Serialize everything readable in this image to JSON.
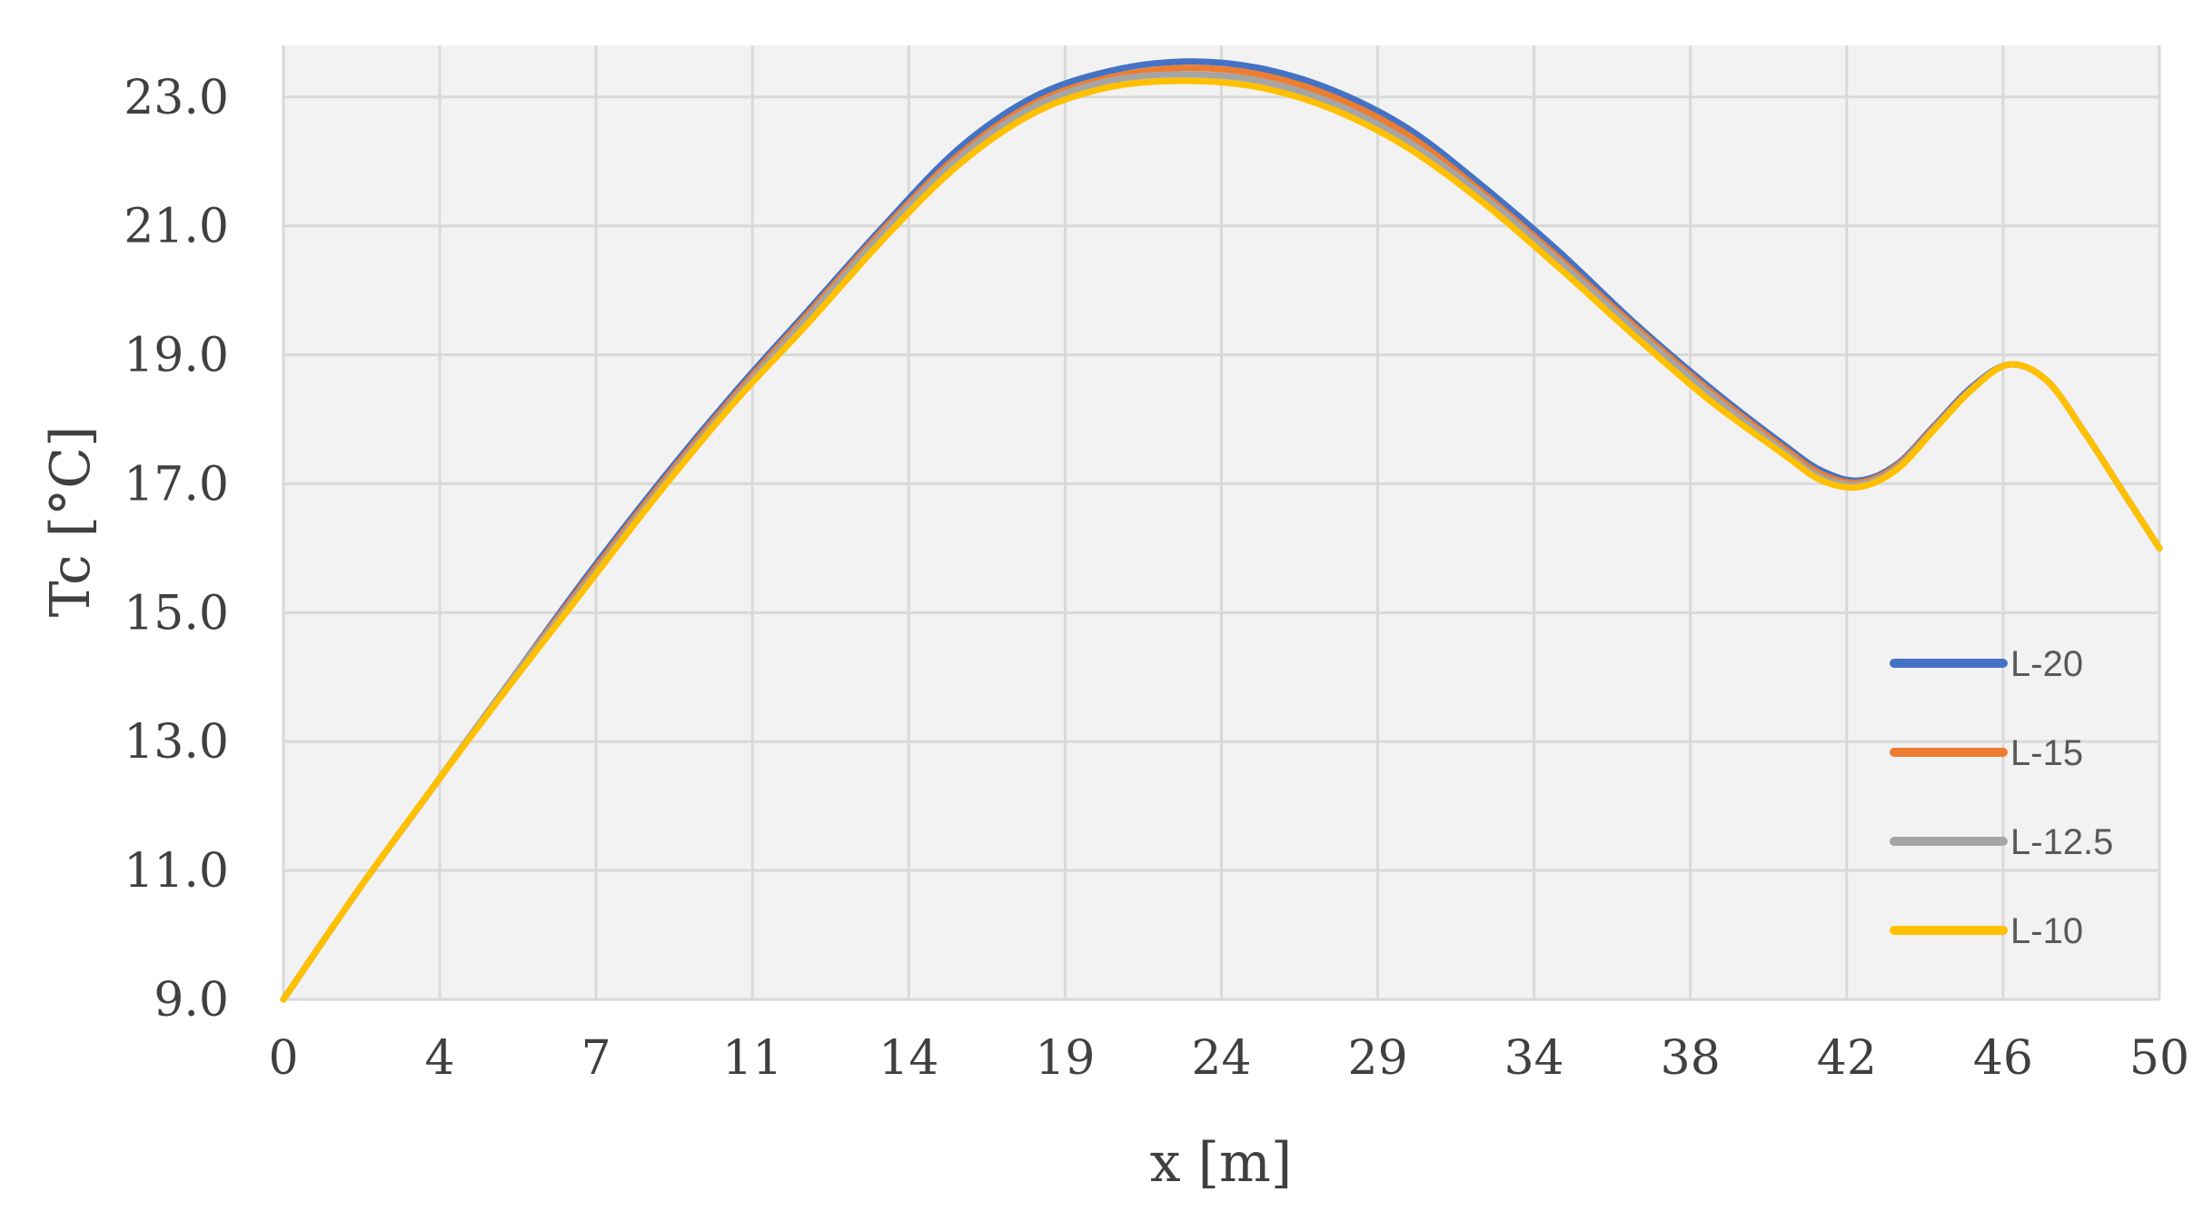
{
  "chart_data": {
    "type": "line",
    "title": "",
    "xlabel": "x [m]",
    "ylabel": "Tc [°C]",
    "x_tick_labels": [
      "0",
      "4",
      "7",
      "11",
      "14",
      "19",
      "24",
      "29",
      "34",
      "38",
      "42",
      "46",
      "50"
    ],
    "y_tick_labels": [
      "9.0",
      "11.0",
      "13.0",
      "15.0",
      "17.0",
      "19.0",
      "21.0",
      "23.0"
    ],
    "xlim": [
      0,
      50
    ],
    "ylim": [
      9.0,
      23.8
    ],
    "grid": true,
    "legend_position": "bottom-right",
    "x": [
      0,
      2,
      4,
      6,
      8,
      10,
      12,
      14,
      16,
      18,
      20,
      22,
      24,
      26,
      28,
      30,
      32,
      34,
      36,
      38,
      40,
      41,
      42,
      43,
      44,
      45,
      46,
      47,
      48,
      49,
      50
    ],
    "series": [
      {
        "name": "L-20",
        "color": "#4472C4",
        "values": [
          9.0,
          10.7,
          12.3,
          13.9,
          15.5,
          17.0,
          18.4,
          19.7,
          21.0,
          22.2,
          23.0,
          23.4,
          23.55,
          23.45,
          23.1,
          22.5,
          21.6,
          20.6,
          19.5,
          18.5,
          17.6,
          17.2,
          17.05,
          17.3,
          17.9,
          18.5,
          18.85,
          18.6,
          17.8,
          16.9,
          16.0
        ]
      },
      {
        "name": "L-15",
        "color": "#ED7D31",
        "values": [
          9.0,
          10.7,
          12.3,
          13.9,
          15.45,
          16.95,
          18.35,
          19.65,
          20.95,
          22.1,
          22.9,
          23.3,
          23.45,
          23.35,
          23.0,
          22.4,
          21.5,
          20.5,
          19.45,
          18.45,
          17.55,
          17.15,
          17.02,
          17.28,
          17.88,
          18.48,
          18.85,
          18.6,
          17.8,
          16.9,
          16.0
        ]
      },
      {
        "name": "L-12.5",
        "color": "#A5A5A5",
        "values": [
          9.0,
          10.7,
          12.3,
          13.9,
          15.4,
          16.9,
          18.3,
          19.6,
          20.9,
          22.05,
          22.85,
          23.25,
          23.35,
          23.25,
          22.9,
          22.3,
          21.45,
          20.45,
          19.4,
          18.4,
          17.5,
          17.1,
          16.99,
          17.25,
          17.86,
          18.47,
          18.85,
          18.6,
          17.8,
          16.9,
          16.0
        ]
      },
      {
        "name": "L-10",
        "color": "#FFC000",
        "values": [
          9.0,
          10.7,
          12.3,
          13.85,
          15.35,
          16.85,
          18.25,
          19.5,
          20.8,
          21.95,
          22.75,
          23.15,
          23.25,
          23.15,
          22.8,
          22.2,
          21.35,
          20.35,
          19.3,
          18.3,
          17.45,
          17.05,
          16.95,
          17.22,
          17.84,
          18.46,
          18.85,
          18.6,
          17.8,
          16.9,
          16.0
        ]
      }
    ]
  }
}
